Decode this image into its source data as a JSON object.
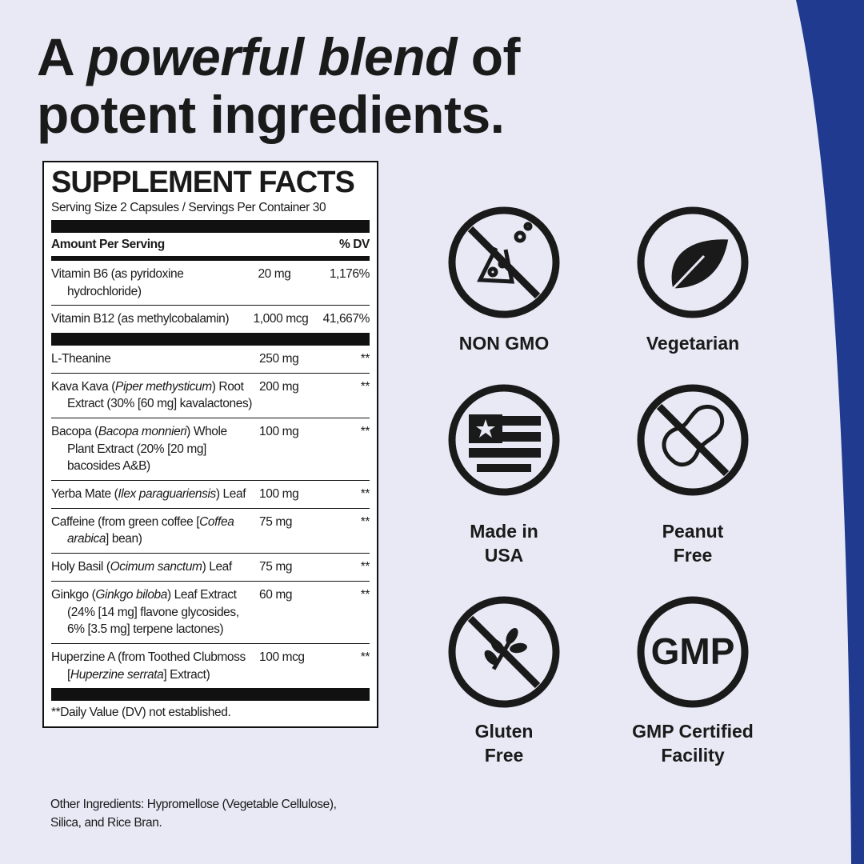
{
  "headline": {
    "line1": [
      "A ",
      "powerful blend",
      " of"
    ],
    "line2": "potent ingredients."
  },
  "facts": {
    "title": "SUPPLEMENT FACTS",
    "serving": "Serving Size 2 Capsules / Servings Per Container 30",
    "amount_header": "Amount Per Serving",
    "dv_header": "% DV",
    "vitamins": [
      {
        "name": [
          "Vitamin B6 (as pyridoxine hydrochloride)"
        ],
        "amount": "20 mg",
        "dv": "1,176%"
      },
      {
        "name": [
          "Vitamin B12 (as methylcobalamin)"
        ],
        "amount": "1,000 mcg",
        "dv": "41,667%"
      }
    ],
    "ingredients": [
      {
        "name": [
          "L-Theanine"
        ],
        "amount": "250 mg",
        "dv": "**"
      },
      {
        "name": [
          "Kava Kava (",
          "Piper methysticum",
          ") Root Extract (30% [60 mg] kavalactones)"
        ],
        "amount": "200 mg",
        "dv": "**"
      },
      {
        "name": [
          "Bacopa (",
          "Bacopa monnieri",
          ") Whole Plant Extract (20% [20 mg] bacosides A&B)"
        ],
        "amount": "100 mg",
        "dv": "**"
      },
      {
        "name": [
          "Yerba Mate (",
          "Ilex paraguariensis",
          ") Leaf"
        ],
        "amount": "100 mg",
        "dv": "**"
      },
      {
        "name": [
          "Caffeine (from green coffee [",
          "Coffea arabica",
          "] bean)"
        ],
        "amount": "75 mg",
        "dv": "**"
      },
      {
        "name": [
          "Holy Basil (",
          "Ocimum sanctum",
          ") Leaf"
        ],
        "amount": "75 mg",
        "dv": "**"
      },
      {
        "name": [
          "Ginkgo (",
          "Ginkgo biloba",
          ") Leaf Extract (24% [14 mg] flavone glycosides, 6% [3.5 mg] terpene lactones)"
        ],
        "amount": "60 mg",
        "dv": "**"
      },
      {
        "name": [
          "Huperzine A (from Toothed Clubmoss [",
          "Huperzine serrata",
          "] Extract)"
        ],
        "amount": "100 mcg",
        "dv": "**"
      }
    ],
    "footnote": "**Daily Value (DV) not established."
  },
  "other_ingredients": "Other Ingredients: Hypromellose (Vegetable Cellulose), Silica, and Rice Bran.",
  "badges": [
    {
      "label": [
        "NON GMO"
      ]
    },
    {
      "label": [
        "Vegetarian"
      ]
    },
    {
      "label": [
        "Made in",
        "USA"
      ]
    },
    {
      "label": [
        "Peanut",
        "Free"
      ]
    },
    {
      "label": [
        "Gluten",
        "Free"
      ]
    },
    {
      "label": [
        "GMP Certified",
        "Facility"
      ],
      "icon_text": "GMP"
    }
  ]
}
